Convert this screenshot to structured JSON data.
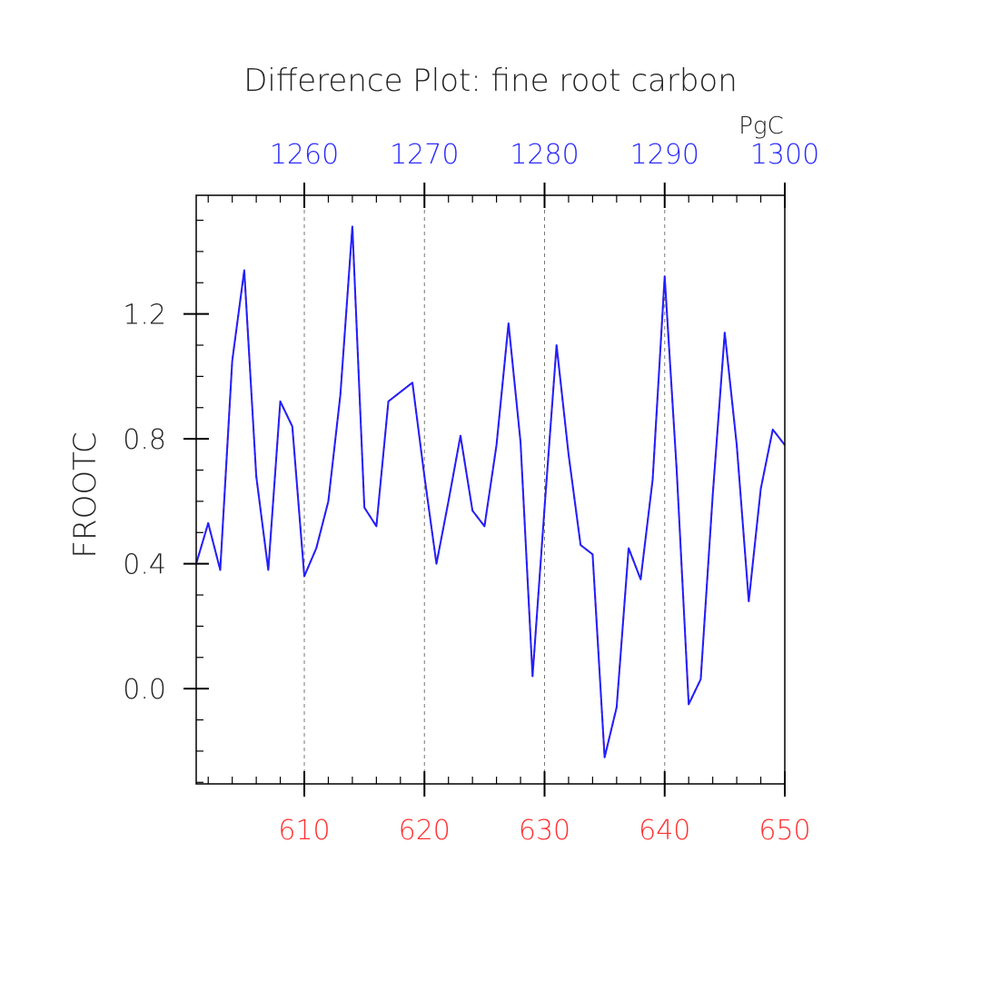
{
  "chart_data": {
    "type": "line",
    "title": "Difference Plot: fine root carbon",
    "xlabel": "",
    "ylabel": "FROOTC",
    "units": "PgC",
    "grid": "vertical dashed at major ticks",
    "bottom_axis": {
      "range": [
        601,
        650
      ],
      "ticks": [
        610,
        620,
        630,
        640,
        650
      ],
      "tick_labels": [
        "610",
        "620",
        "630",
        "640",
        "650"
      ],
      "color": "#ff3030"
    },
    "top_axis": {
      "range": [
        1251,
        1300
      ],
      "ticks": [
        1260,
        1270,
        1280,
        1290,
        1300
      ],
      "tick_labels": [
        "1260",
        "1270",
        "1280",
        "1290",
        "1300"
      ],
      "color": "#2a2aff"
    },
    "y_axis": {
      "range": [
        -0.305,
        1.58
      ],
      "ticks": [
        0.0,
        0.4,
        0.8,
        1.2
      ],
      "tick_labels": [
        "0.0",
        "0.4",
        "0.8",
        "1.2"
      ]
    },
    "x": [
      601,
      602,
      603,
      604,
      605,
      606,
      607,
      608,
      609,
      610,
      611,
      612,
      613,
      614,
      615,
      616,
      617,
      618,
      619,
      620,
      621,
      622,
      623,
      624,
      625,
      626,
      627,
      628,
      629,
      630,
      631,
      632,
      633,
      634,
      635,
      636,
      637,
      638,
      639,
      640,
      641,
      642,
      643,
      644,
      645,
      646,
      647,
      648,
      649,
      650
    ],
    "series": [
      {
        "color": "#ff3030",
        "dashed": true,
        "values": [
          0.4,
          0.53,
          0.38,
          1.05,
          1.34,
          0.68,
          0.38,
          0.92,
          0.84,
          0.36,
          0.45,
          0.6,
          0.94,
          1.48,
          0.58,
          0.52,
          0.92,
          0.95,
          0.98,
          0.68,
          0.4,
          0.6,
          0.81,
          0.57,
          0.52,
          0.78,
          1.17,
          0.79,
          0.04,
          0.58,
          1.1,
          0.75,
          0.46,
          0.43,
          -0.22,
          -0.06,
          0.45,
          0.35,
          0.67,
          1.32,
          0.7,
          -0.05,
          0.03,
          0.62,
          1.14,
          0.78,
          0.28,
          0.64,
          0.83,
          0.78
        ]
      },
      {
        "color": "#2020ff",
        "dashed": false,
        "values": [
          0.4,
          0.53,
          0.38,
          1.05,
          1.34,
          0.68,
          0.38,
          0.92,
          0.84,
          0.36,
          0.45,
          0.6,
          0.94,
          1.48,
          0.58,
          0.52,
          0.92,
          0.95,
          0.98,
          0.68,
          0.4,
          0.6,
          0.81,
          0.57,
          0.52,
          0.78,
          1.17,
          0.79,
          0.04,
          0.58,
          1.1,
          0.75,
          0.46,
          0.43,
          -0.22,
          -0.06,
          0.45,
          0.35,
          0.67,
          1.32,
          0.7,
          -0.05,
          0.03,
          0.62,
          1.14,
          0.78,
          0.28,
          0.64,
          0.83,
          0.78
        ]
      }
    ]
  }
}
